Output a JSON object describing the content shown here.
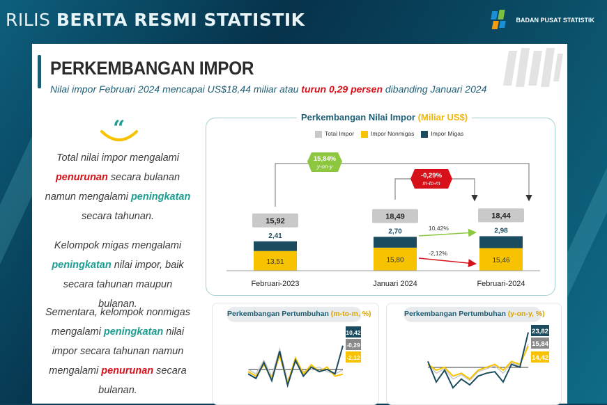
{
  "header": {
    "rilis_prefix": "RILIS",
    "rilis_main": "BERITA RESMI STATISTIK",
    "agency": "BADAN PUSAT STATISTIK"
  },
  "slide": {
    "title": "PERKEMBANGAN IMPOR",
    "subtitle_pre": "Nilai impor Februari 2024 mencapai US$18,44 miliar atau ",
    "subtitle_red": "turun 0,29 persen",
    "subtitle_post": " dibanding Januari 2024"
  },
  "quote": {
    "mark": "“",
    "p1": [
      "Total nilai impor mengalami ",
      "penurunan",
      " secara bulanan namun mengalami ",
      "peningkatan",
      " secara tahunan."
    ],
    "p2": [
      "Kelompok migas mengalami ",
      "peningkatan",
      " nilai impor, baik secara tahunan maupun bulanan."
    ],
    "p3": [
      "Sementara, kelompok nonmigas mengalami ",
      "peningkatan",
      " nilai impor secara tahunan namun mengalami ",
      "penurunan",
      " secara bulanan."
    ]
  },
  "colors": {
    "total": "#c9c9c9",
    "nonmigas": "#f7c300",
    "migas": "#1b4b5e",
    "red": "#d7111a",
    "green": "#8dc63f",
    "teal": "#1c9e93"
  },
  "chart_data": [
    {
      "type": "bar",
      "title_main": "Perkembangan Nilai Impor",
      "title_unit": "(Miliar US$)",
      "categories": [
        "Februari-2023",
        "Januari 2024",
        "Februari-2024"
      ],
      "series": [
        {
          "name": "Total Impor",
          "values": [
            15.92,
            18.49,
            18.44
          ]
        },
        {
          "name": "Impor Nonmigas",
          "values": [
            13.51,
            15.8,
            15.46
          ]
        },
        {
          "name": "Impor Migas",
          "values": [
            2.41,
            2.7,
            2.98
          ]
        }
      ],
      "total_labels": [
        "15,92",
        "18,49",
        "18,44"
      ],
      "nonmigas_labels": [
        "13,51",
        "15,80",
        "15,46"
      ],
      "migas_labels": [
        "2,41",
        "2,70",
        "2,98"
      ],
      "annotations": {
        "yoy_value": "15,84%",
        "yoy_label": "y-on-y",
        "mtm_value": "-0,29%",
        "mtm_label": "m-to-m",
        "migas_mtm": "10,42%",
        "nonmigas_mtm": "-2,12%"
      }
    },
    {
      "type": "line",
      "title_main": "Perkembangan Pertumbuhan",
      "title_unit": "(m-to-m, %)",
      "series": [
        {
          "values": [
            -2,
            -4,
            3,
            -5,
            8,
            -7,
            4,
            -3,
            1,
            -1,
            0,
            -2,
            10.42
          ]
        },
        {
          "values": [
            -1,
            -3,
            2,
            -4,
            6,
            -6,
            5,
            -2,
            2,
            -1,
            1,
            -3,
            -2.12
          ]
        },
        {
          "values": [
            0,
            -2,
            4,
            -3,
            9,
            -5,
            3,
            -1,
            0,
            1,
            -1,
            -2,
            -0.29
          ]
        }
      ],
      "end_labels": [
        "10,42",
        "-0,29",
        "-2,12"
      ]
    },
    {
      "type": "line",
      "title_main": "Perkembangan Pertumbuhan",
      "title_unit": "(y-on-y, %)",
      "series": [
        {
          "values": [
            4,
            -10,
            -2,
            -14,
            -8,
            -12,
            -6,
            -4,
            -3,
            -10,
            2,
            0,
            23.82
          ]
        },
        {
          "values": [
            2,
            -2,
            0,
            -6,
            -4,
            -8,
            -2,
            0,
            2,
            -2,
            4,
            2,
            14.42
          ]
        },
        {
          "values": [
            2,
            -4,
            -1,
            -8,
            -5,
            -9,
            -3,
            -1,
            1,
            -4,
            3,
            1,
            15.84
          ]
        }
      ],
      "end_labels": [
        "23,82",
        "15,84",
        "14,42"
      ]
    }
  ]
}
